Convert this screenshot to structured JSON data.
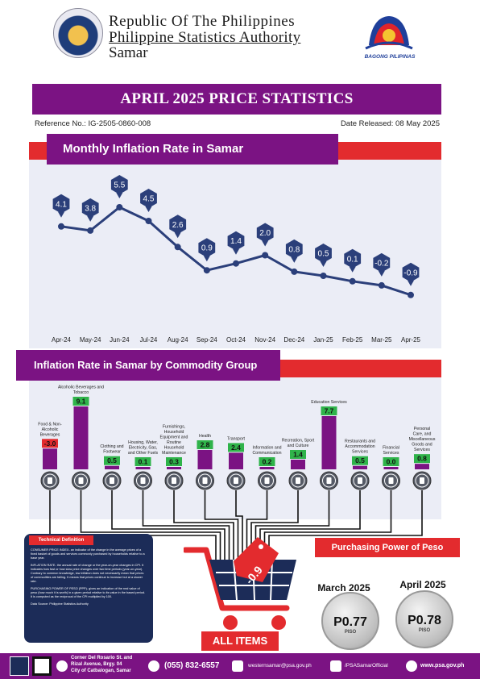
{
  "header": {
    "line1": "Republic Of The Philippines",
    "line2": "Philippine Statistics Authority",
    "line3": "Samar",
    "logo_text": "BAGONG PILIPINAS"
  },
  "title": "APRIL 2025 PRICE STATISTICS",
  "reference": "Reference No.: IG-2505-0860-008",
  "released": "Date Released: 08 May 2025",
  "line_section_title": "Monthly Inflation Rate in Samar",
  "bar_section_title": "Inflation Rate in Samar by Commodity Group",
  "colors": {
    "purple": "#7b1383",
    "red": "#e32b2e",
    "navy": "#1f3565",
    "green": "#2fb34a",
    "panel": "#ebedf6"
  },
  "chart_data": [
    {
      "type": "line",
      "title": "Monthly Inflation Rate in Samar",
      "categories": [
        "Apr-24",
        "May-24",
        "Jun-24",
        "Jul-24",
        "Aug-24",
        "Sep-24",
        "Oct-24",
        "Nov-24",
        "Dec-24",
        "Jan-25",
        "Feb-25",
        "Mar-25",
        "Apr-25"
      ],
      "values": [
        4.1,
        3.8,
        5.5,
        4.5,
        2.6,
        0.9,
        1.4,
        2.0,
        0.8,
        0.5,
        0.1,
        -0.2,
        -0.9
      ],
      "labels": [
        "4.1",
        "3.8",
        "5.5",
        "4.5",
        "2.6",
        "0.9",
        "1.4",
        "2.0",
        "0.8",
        "0.5",
        "0.1",
        "-0.2",
        "-0.9"
      ],
      "ylim": [
        -1.5,
        6.5
      ]
    },
    {
      "type": "bar",
      "title": "Inflation Rate in Samar by Commodity Group",
      "categories": [
        "Food & Non-Alcoholic Beverages",
        "Alcoholic Beverages and Tobacco",
        "Clothing and Footwear",
        "Housing, Water, Electricity, Gas, and Other Fuels",
        "Furnishings, Household Equipment and Routine Household Maintenance",
        "Health",
        "Transport",
        "Information and Communication",
        "Recreation, Sport and Culture",
        "Education Services",
        "Restaurants and Accommodation Services",
        "Financial Services",
        "Personal Care, and Miscellaneous Goods and Services"
      ],
      "label_lines": [
        [
          "Food & Non-",
          "Alcoholic",
          "Beverages"
        ],
        [
          "Alcoholic Beverages and",
          "Tobacco"
        ],
        [
          "Clothing and",
          "Footwear"
        ],
        [
          "Housing, Water,",
          "Electricity, Gas,",
          "and Other Fuels"
        ],
        [
          "Furnishings,",
          "Household",
          "Equipment and",
          "Routine",
          "Household",
          "Maintenance"
        ],
        [
          "Health"
        ],
        [
          "Transport"
        ],
        [
          "Information and",
          "Communication"
        ],
        [
          "Recreation, Sport",
          "and Culture"
        ],
        [
          "Education Services"
        ],
        [
          "Restaurants and",
          "Accommodation",
          "Services"
        ],
        [
          "Financial",
          "Services"
        ],
        [
          "Personal",
          "Care, and",
          "Miscellaneous",
          "Goods and",
          "Services"
        ]
      ],
      "values": [
        -3.0,
        9.1,
        0.5,
        0.1,
        0.3,
        2.8,
        2.4,
        0.2,
        1.4,
        7.7,
        0.5,
        0.0,
        0.8
      ],
      "labels": [
        "-3.0",
        "9.1",
        "0.5",
        "0.1",
        "0.3",
        "2.8",
        "2.4",
        "0.2",
        "1.4",
        "7.7",
        "0.5",
        "0.0",
        "0.8"
      ],
      "icons": [
        "food-icon",
        "bottle-icon",
        "shirt-icon",
        "plug-icon",
        "furniture-icon",
        "health-icon",
        "car-icon",
        "phone-icon",
        "ball-icon",
        "books-icon",
        "restaurant-icon",
        "money-icon",
        "care-icon"
      ]
    }
  ],
  "all_items": {
    "label": "ALL ITEMS",
    "value": "-0.9"
  },
  "technical": {
    "title": "Technical Definition",
    "paragraphs": [
      "CONSUMER PRICE INDEX- an indicator of the change in the average prices of a fixed basket of goods and services commonly purchased by households relative to a base year.",
      "INFLATION RATE- the annual rate of change or the year-on-year changes in CPI. It indicates how fast or how slow price changes over two time periods (year-on-year). Contrary to common knowledge, low inflation does not necessarily mean that prices of commodities are falling. It means that prices continue to increase but at a slower rate.",
      "PURCHASING POWER OF PESO (PPP)- gives an indication of the real value of peso (how much it is worth) in a given period relative to its value in the based period. It is computed as the reciprocal of the CPI multiplied by 100.",
      "Data Source: Philippine Statistics Authority"
    ]
  },
  "purchasing_power": {
    "title": "Purchasing Power of Peso",
    "months": [
      "March 2025",
      "April 2025"
    ],
    "values": [
      "P0.77",
      "P0.78"
    ],
    "unit": "PISO"
  },
  "footer": {
    "address": [
      "Corner Del Rosario St. and",
      "Rizal Avenue, Brgy. 04",
      "City of Catbalogan, Samar"
    ],
    "phone": "(055) 832-6557",
    "email": "westernsamar@psa.gov.ph",
    "facebook": "/PSASamarOfficial",
    "website": "www.psa.gov.ph"
  }
}
